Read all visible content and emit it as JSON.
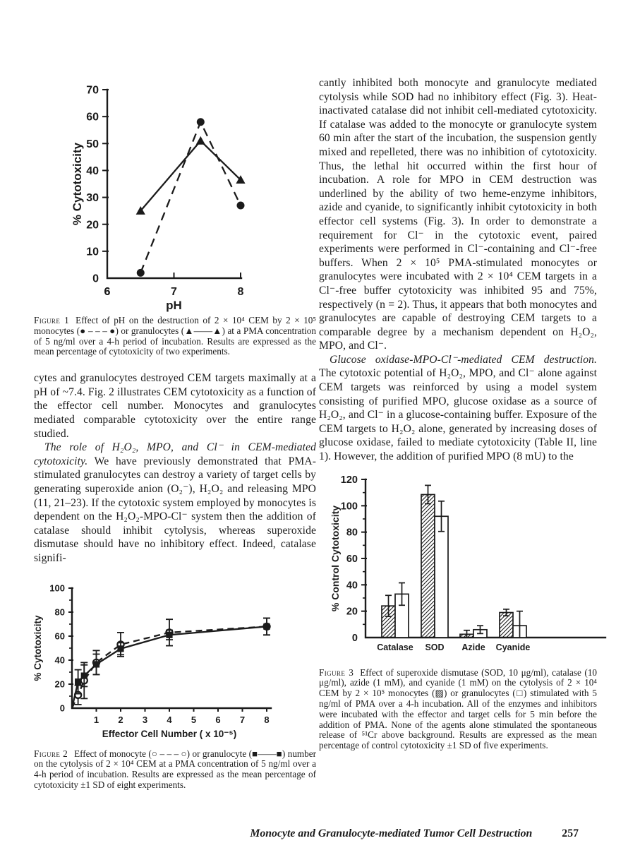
{
  "colors": {
    "ink": "#1b1b1b",
    "paper": "#ffffff"
  },
  "page": {
    "footer": {
      "running_title": "Monocyte and Granulocyte-mediated Tumor Cell Destruction",
      "page_number": "257"
    }
  },
  "left_column": {
    "para1": "cytes and granulocytes destroyed CEM targets maximally at a pH of ~7.4. Fig. 2 illustrates CEM cytotoxicity as a function of the effector cell number. Monocytes and granulocytes mediated comparable cytotoxicity over the entire range studied.",
    "para2_lead": "The role of H₂O₂, MPO, and Cl⁻ in CEM-mediated cytotoxicity.",
    "para2_rest": "We have previously demonstrated that PMA-stimulated granulocytes can destroy a variety of target cells by generating superoxide anion (O₂⁻), H₂O₂ and releasing MPO (11, 21–23). If the cytotoxic system employed by monocytes is dependent on the H₂O₂-MPO-Cl⁻ system then the addition of catalase should inhibit cytolysis, whereas superoxide dismutase should have no inhibitory effect. Indeed, catalase signifi-"
  },
  "right_column": {
    "para1": "cantly inhibited both monocyte and granulocyte mediated cytolysis while SOD had no inhibitory effect (Fig. 3). Heat-inactivated catalase did not inhibit cell-mediated cytotoxicity. If catalase was added to the monocyte or granulocyte system 60 min after the start of the incubation, the suspension gently mixed and repelleted, there was no inhibition of cytotoxicity. Thus, the lethal hit occurred within the first hour of incubation. A role for MPO in CEM destruction was underlined by the ability of two heme-enzyme inhibitors, azide and cyanide, to significantly inhibit cytotoxicity in both effector cell systems (Fig. 3). In order to demonstrate a requirement for Cl⁻ in the cytotoxic event, paired experiments were performed in Cl⁻-containing and Cl⁻-free buffers. When 2 × 10⁵ PMA-stimulated monocytes or granulocytes were incubated with 2 × 10⁴ CEM targets in a Cl⁻-free buffer cytotoxicity was inhibited 95 and 75%, respectively (n = 2). Thus, it appears that both monocytes and granulocytes are capable of destroying CEM targets to a comparable degree by a mechanism dependent on H₂O₂, MPO, and Cl⁻.",
    "para2_lead": "Glucose oxidase-MPO-Cl⁻-mediated CEM destruction.",
    "para2_rest": "The cytotoxic potential of H₂O₂, MPO, and Cl⁻ alone against CEM targets was reinforced by using a model system consisting of purified MPO, glucose oxidase as a source of H₂O₂, and Cl⁻ in a glucose-containing buffer. Exposure of the CEM targets to H₂O₂ alone, generated by increasing doses of glucose oxidase, failed to mediate cytotoxicity (Table II, line 1). However, the addition of purified MPO (8 mU) to the"
  },
  "figure1": {
    "label": "Figure 1",
    "caption": "Effect of pH on the destruction of 2 × 10⁴ CEM by 2 × 10⁵ monocytes (● – – – ●) or granulocytes (▲——▲) at a PMA concentration of 5 ng/ml over a 4-h period of incubation. Results are expressed as the mean percentage of cytotoxicity of two experiments."
  },
  "figure2": {
    "label": "Figure 2",
    "caption": "Effect of monocyte (○ – – – ○) or granulocyte (■——■) number on the cytolysis of 2 × 10⁴ CEM at a PMA concentration of 5 ng/ml over a 4-h period of incubation. Results are expressed as the mean percentage of cytotoxicity ±1 SD of eight experiments."
  },
  "figure3": {
    "label": "Figure 3",
    "caption": "Effect of superoxide dismutase (SOD, 10 μg/ml), catalase (10 μg/ml), azide (1 mM), and cyanide (1 mM) on the cytolysis of 2 × 10⁴ CEM by 2 × 10⁵ monocytes (▨) or granulocytes (□) stimulated with 5 ng/ml of PMA over a 4-h incubation. All of the enzymes and inhibitors were incubated with the effector and target cells for 5 min before the addition of PMA. None of the agents alone stimulated the spontaneous release of ⁵¹Cr above background. Results are expressed as the mean percentage of control cytotoxicity ±1 SD of five experiments."
  },
  "chart_data": [
    {
      "id": "fig1",
      "type": "line",
      "title": "Figure 1: Effect of pH on CEM destruction",
      "xlabel": "pH",
      "ylabel": "% Cytotoxicity",
      "xlim": [
        6,
        8
      ],
      "ylim": [
        0,
        70
      ],
      "xticks": [
        6,
        7,
        8
      ],
      "yticks": [
        0,
        10,
        20,
        30,
        40,
        50,
        60,
        70
      ],
      "grid": false,
      "legend_position": "none",
      "series": [
        {
          "name": "monocytes",
          "marker": "filled-circle",
          "line": "dashed",
          "x": [
            6.5,
            7.4,
            8.0
          ],
          "y": [
            2,
            58,
            27
          ]
        },
        {
          "name": "granulocytes",
          "marker": "filled-triangle",
          "line": "solid",
          "x": [
            6.5,
            7.4,
            8.0
          ],
          "y": [
            25,
            51,
            36.5
          ]
        }
      ]
    },
    {
      "id": "fig2",
      "type": "line",
      "title": "Figure 2: Effect of effector cell number on CEM cytolysis",
      "xlabel": "Effector Cell Number ( x 10⁻⁵)",
      "ylabel": "% Cytotoxicity",
      "xlim": [
        0,
        8
      ],
      "ylim": [
        0,
        100
      ],
      "xticks": [
        1,
        2,
        3,
        4,
        5,
        6,
        7,
        8
      ],
      "yticks": [
        0,
        20,
        40,
        60,
        80,
        100
      ],
      "yminor": [
        10,
        30,
        50,
        70,
        90
      ],
      "from_origin": true,
      "grid": false,
      "legend_position": "none",
      "series": [
        {
          "name": "monocytes",
          "marker": "open-circle",
          "line": "dashed",
          "x": [
            0.25,
            0.5,
            1,
            2,
            4,
            8
          ],
          "y": [
            11,
            23,
            38,
            53,
            63,
            68
          ],
          "err": [
            8,
            15,
            10,
            10,
            11,
            7
          ]
        },
        {
          "name": "granulocytes",
          "marker": "filled-square",
          "line": "solid",
          "x": [
            0.25,
            0.5,
            1,
            2,
            4,
            8
          ],
          "y": [
            22,
            27,
            36.5,
            49.5,
            61,
            68
          ],
          "err": [
            10,
            9,
            8.5,
            5,
            4,
            7
          ]
        }
      ]
    },
    {
      "id": "fig3",
      "type": "bar",
      "title": "Figure 3: Effect of SOD, catalase, azide and cyanide on CEM cytolysis",
      "xlabel": "",
      "ylabel": "% Control Cytotoxicity",
      "ylim": [
        0,
        120
      ],
      "yticks": [
        0,
        20,
        40,
        60,
        80,
        100,
        120
      ],
      "yminor": [
        10,
        30,
        50,
        70,
        90,
        110
      ],
      "categories": [
        "Catalase",
        "SOD",
        "Azide",
        "Cyanide"
      ],
      "grid": false,
      "legend_position": "none",
      "series": [
        {
          "name": "monocytes",
          "fill": "hatched",
          "values": [
            24,
            108.5,
            2.5,
            19
          ],
          "err": [
            8,
            7,
            3,
            2.5
          ]
        },
        {
          "name": "granulocytes",
          "fill": "open",
          "values": [
            33,
            92,
            6,
            9
          ],
          "err": [
            8.5,
            11.5,
            3,
            11
          ]
        }
      ]
    }
  ]
}
